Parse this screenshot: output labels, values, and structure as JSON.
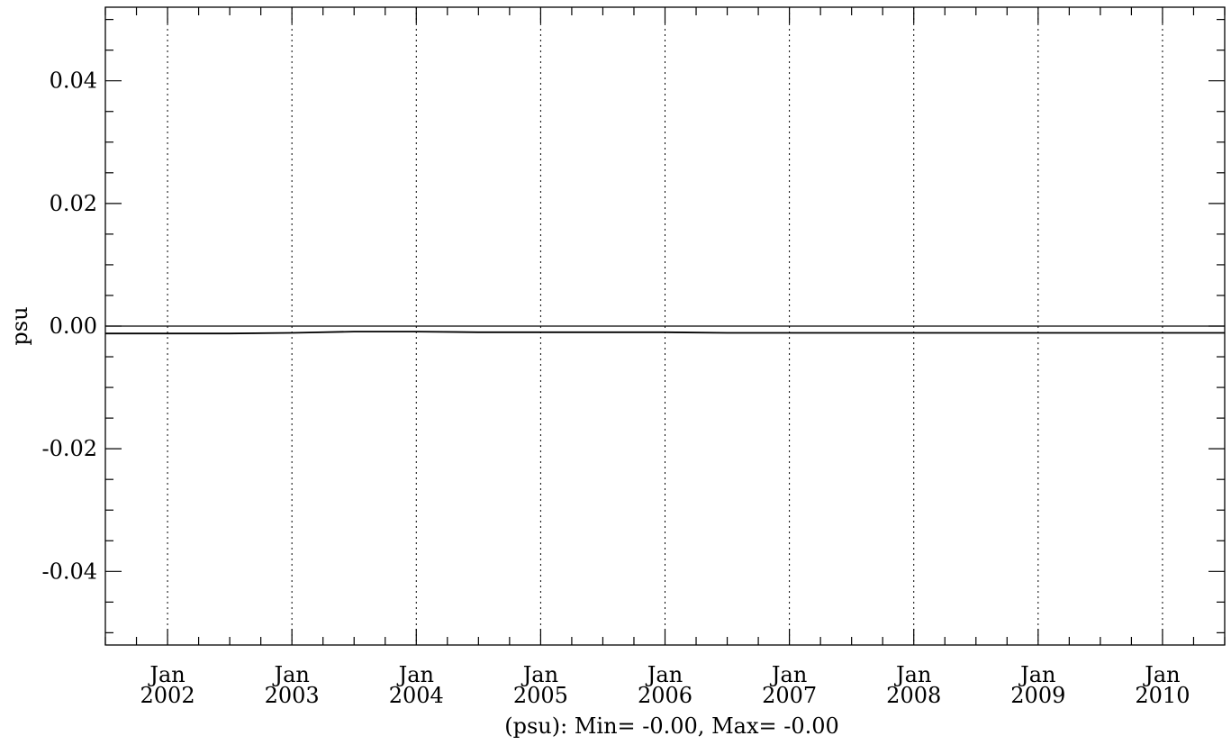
{
  "chart_data": {
    "type": "line",
    "title": "",
    "ylabel": "psu",
    "xlabel": "(psu): Min= -0.00, Max= -0.00",
    "ylim": [
      -0.052,
      0.052
    ],
    "xlim": [
      "2001-07",
      "2010-07"
    ],
    "y_ticks": [
      {
        "value": 0.04,
        "label": "0.04"
      },
      {
        "value": 0.02,
        "label": "0.02"
      },
      {
        "value": 0.0,
        "label": "0.00"
      },
      {
        "value": -0.02,
        "label": "-0.02"
      },
      {
        "value": -0.04,
        "label": "-0.04"
      }
    ],
    "y_minor_step": 0.005,
    "x_ticks": [
      {
        "date": "2002-01",
        "month": "Jan",
        "year": "2002"
      },
      {
        "date": "2003-01",
        "month": "Jan",
        "year": "2003"
      },
      {
        "date": "2004-01",
        "month": "Jan",
        "year": "2004"
      },
      {
        "date": "2005-01",
        "month": "Jan",
        "year": "2005"
      },
      {
        "date": "2006-01",
        "month": "Jan",
        "year": "2006"
      },
      {
        "date": "2007-01",
        "month": "Jan",
        "year": "2007"
      },
      {
        "date": "2008-01",
        "month": "Jan",
        "year": "2008"
      },
      {
        "date": "2009-01",
        "month": "Jan",
        "year": "2009"
      },
      {
        "date": "2010-01",
        "month": "Jan",
        "year": "2010"
      }
    ],
    "x_minor_step_months": 3,
    "vertical_grid": "dotted at January of each year",
    "reference_line": 0.0,
    "series": [
      {
        "x": [
          "2001-07",
          "2002-01",
          "2002-07",
          "2003-01",
          "2003-07",
          "2004-01",
          "2004-07",
          "2005-01",
          "2005-07",
          "2006-01",
          "2006-07",
          "2007-01",
          "2007-07",
          "2008-01",
          "2008-07",
          "2009-01",
          "2009-07",
          "2010-01",
          "2010-07"
        ],
        "y": [
          -0.0012,
          -0.0012,
          -0.0012,
          -0.0011,
          -0.0009,
          -0.0009,
          -0.001,
          -0.001,
          -0.001,
          -0.001,
          -0.0011,
          -0.0011,
          -0.0011,
          -0.0011,
          -0.0011,
          -0.0011,
          -0.0011,
          -0.0011,
          -0.0011
        ]
      }
    ],
    "colors": {
      "line": "#000000",
      "axis": "#000000",
      "background": "#ffffff"
    }
  }
}
